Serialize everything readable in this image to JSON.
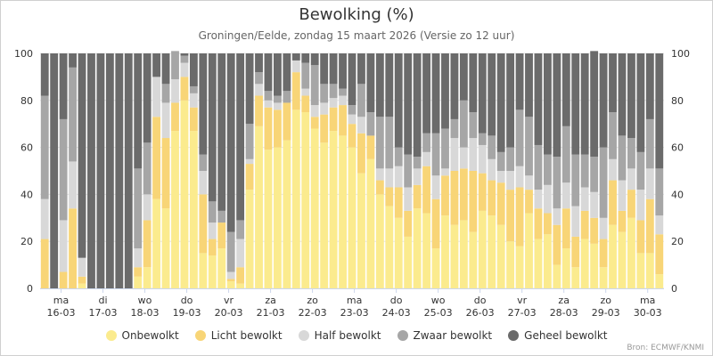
{
  "chart_data": {
    "type": "bar",
    "stacked": true,
    "title": "Bewolking (%)",
    "subtitle": "Groningen/Eelde, zondag 15 maart 2026 (Versie zo 12 uur)",
    "ylim": [
      0,
      100
    ],
    "y_ticks": [
      "0",
      "20",
      "40",
      "60",
      "80",
      "100"
    ],
    "x_labels": [
      {
        "day": "ma",
        "date": "16-03"
      },
      {
        "day": "di",
        "date": "17-03"
      },
      {
        "day": "wo",
        "date": "18-03"
      },
      {
        "day": "do",
        "date": "19-03"
      },
      {
        "day": "vr",
        "date": "20-03"
      },
      {
        "day": "za",
        "date": "21-03"
      },
      {
        "day": "zo",
        "date": "22-03"
      },
      {
        "day": "ma",
        "date": "23-03"
      },
      {
        "day": "do",
        "date": "24-03"
      },
      {
        "day": "wo",
        "date": "25-03"
      },
      {
        "day": "do",
        "date": "26-03"
      },
      {
        "day": "vr",
        "date": "27-03"
      },
      {
        "day": "za",
        "date": "28-03"
      },
      {
        "day": "zo",
        "date": "29-03"
      },
      {
        "day": "ma",
        "date": "30-03"
      }
    ],
    "legend_position": "bottom",
    "series": [
      {
        "name": "Onbewolkt",
        "color": "#FBEB8E",
        "values": [
          0,
          0,
          0,
          0,
          2,
          0,
          0,
          0,
          0,
          0,
          5,
          9,
          38,
          34,
          67,
          80,
          67,
          15,
          14,
          17,
          3,
          2,
          42,
          69,
          59,
          60,
          63,
          76,
          75,
          68,
          62,
          67,
          65,
          60,
          49,
          55,
          40,
          35,
          30,
          22,
          34,
          32,
          17,
          31,
          27,
          29,
          24,
          33,
          31,
          27,
          20,
          18,
          32,
          21,
          23,
          10,
          17,
          9,
          21,
          19,
          9,
          27,
          24,
          30,
          15,
          15,
          6
        ]
      },
      {
        "name": "Licht bewolkt",
        "color": "#F8D577",
        "values": [
          21,
          0,
          7,
          34,
          3,
          0,
          0,
          0,
          0,
          0,
          4,
          20,
          35,
          30,
          12,
          10,
          10,
          25,
          7,
          11,
          1,
          7,
          11,
          13,
          18,
          16,
          16,
          16,
          7,
          5,
          12,
          10,
          13,
          10,
          17,
          10,
          6,
          8,
          13,
          11,
          10,
          20,
          21,
          17,
          23,
          22,
          26,
          16,
          15,
          18,
          22,
          25,
          10,
          13,
          9,
          17,
          17,
          13,
          12,
          11,
          12,
          19,
          9,
          12,
          14,
          23,
          17
        ]
      },
      {
        "name": "Half bewolkt",
        "color": "#D8D8D8",
        "values": [
          17,
          0,
          22,
          20,
          8,
          0,
          0,
          0,
          0,
          0,
          8,
          11,
          17,
          15,
          10,
          6,
          6,
          10,
          7,
          0,
          3,
          12,
          2,
          5,
          3,
          3,
          0,
          5,
          3,
          5,
          5,
          4,
          4,
          4,
          7,
          0,
          5,
          8,
          9,
          10,
          7,
          6,
          10,
          3,
          14,
          9,
          14,
          12,
          9,
          5,
          8,
          9,
          6,
          8,
          12,
          7,
          11,
          13,
          10,
          11,
          9,
          9,
          13,
          9,
          13,
          13,
          8
        ]
      },
      {
        "name": "Zwaar bewolkt",
        "color": "#A6A6A6",
        "values": [
          44,
          0,
          43,
          40,
          0,
          0,
          0,
          0,
          0,
          0,
          34,
          22,
          0,
          8,
          12,
          3,
          3,
          7,
          9,
          5,
          17,
          8,
          15,
          5,
          4,
          3,
          5,
          0,
          11,
          17,
          8,
          6,
          3,
          4,
          14,
          10,
          22,
          22,
          8,
          14,
          5,
          8,
          18,
          17,
          8,
          20,
          11,
          5,
          10,
          8,
          10,
          24,
          25,
          19,
          13,
          22,
          24,
          22,
          14,
          15,
          30,
          20,
          19,
          13,
          16,
          21,
          20
        ]
      },
      {
        "name": "Geheel bewolkt",
        "color": "#6B6B6B",
        "values": [
          18,
          100,
          28,
          6,
          87,
          100,
          100,
          100,
          100,
          100,
          49,
          38,
          10,
          13,
          0,
          1,
          14,
          43,
          63,
          67,
          76,
          71,
          30,
          8,
          16,
          18,
          16,
          3,
          4,
          5,
          13,
          13,
          15,
          22,
          13,
          25,
          27,
          27,
          40,
          43,
          44,
          34,
          34,
          32,
          28,
          20,
          25,
          34,
          35,
          42,
          40,
          24,
          27,
          39,
          43,
          44,
          31,
          43,
          43,
          45,
          40,
          25,
          35,
          36,
          42,
          28,
          49
        ]
      }
    ]
  },
  "legend": [
    "Onbewolkt",
    "Licht bewolkt",
    "Half bewolkt",
    "Zwaar bewolkt",
    "Geheel bewolkt"
  ],
  "credits": "Bron: ECMWF/KNMI"
}
